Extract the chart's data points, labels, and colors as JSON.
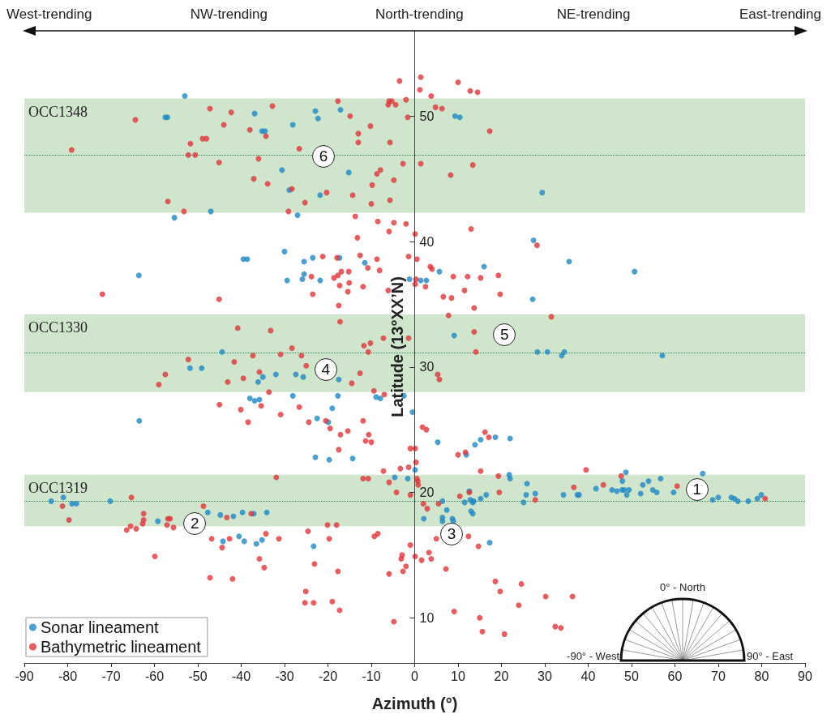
{
  "chart_data": {
    "type": "scatter",
    "xlabel": "Azimuth (°)",
    "ylabel": "Latitude (13°XX’N)",
    "xlim": [
      -90,
      90
    ],
    "xticks": [
      -90,
      -80,
      -70,
      -60,
      -50,
      -40,
      -30,
      -20,
      -10,
      0,
      10,
      20,
      30,
      40,
      50,
      60,
      70,
      80,
      90
    ],
    "ylim": [
      6.4,
      56.8
    ],
    "yticks": [
      10,
      20,
      30,
      40,
      50
    ],
    "grid": false,
    "legend": "bottom left",
    "marker": "circle",
    "series": [
      {
        "name": "Sonar lineament",
        "color": "#1e88c4",
        "x": [
          -53,
          -57.5,
          -57,
          -36.9,
          -35.2,
          -34.5,
          -30.6,
          -28.9,
          -47,
          -55.4,
          -30,
          -39.5,
          -38.6,
          -63.6,
          -29.4,
          -44.4,
          -51.8,
          -49.1,
          -22.9,
          -22.3,
          -17.1,
          -28.1,
          -15.2,
          -21.8,
          -27,
          9.3,
          10.4,
          29.4,
          -25.5,
          -23.5,
          -17.3,
          -11.5,
          -25.5,
          -25.9,
          -21.8,
          -1.2,
          1.4,
          2.7,
          5.7,
          16,
          27.4,
          27.2,
          9.1,
          28.3,
          30.6,
          33.9,
          34.5,
          57.1,
          35.6,
          50.7,
          -35,
          -36.1,
          -32,
          -38,
          -36.9,
          -35.8,
          -63.5,
          -83.8,
          -81,
          -79,
          -78,
          -70.2,
          -59.2,
          -47.7,
          -44.8,
          -41.8,
          -39.7,
          -37.1,
          -34.1,
          -44.2,
          -40.5,
          -39.3,
          -36.5,
          -35.2,
          -27.4,
          -25.7,
          -17.5,
          -28.1,
          -17.7,
          -8.9,
          -7.9,
          -2.5,
          -19,
          -0.5,
          -22.5,
          -19.9,
          5.3,
          -22.9,
          -19.7,
          -14.3,
          11.9,
          13.9,
          15.2,
          18.6,
          22,
          0.1,
          -4.6,
          -1.6,
          21.8,
          22,
          25.9,
          12.6,
          6.4,
          12.8,
          13.4,
          13.6,
          11.5,
          15.2,
          16.5,
          25.1,
          25.7,
          27.8,
          7.4,
          13,
          13.4,
          2.1,
          6.4,
          6.4,
          8.7,
          8.9,
          17.3,
          -23.3,
          34.3,
          37.5,
          37.9,
          41.8,
          45.5,
          46.6,
          47.8,
          48.3,
          49.4,
          47.9,
          48.7,
          48.9,
          52.1,
          52.6,
          53.9,
          54.9,
          55.8,
          56.7,
          59.7,
          66.4,
          68.7,
          70,
          73,
          73.7,
          74.5,
          76.9,
          79,
          79.9
        ],
        "values": [
          51.6,
          49.9,
          49.9,
          50.2,
          48.8,
          48.8,
          45.7,
          44.1,
          42.4,
          41.9,
          39.2,
          38.6,
          38.6,
          37.3,
          36.9,
          31.2,
          29.9,
          29.9,
          50.4,
          49.8,
          50.5,
          49.3,
          45.5,
          43.7,
          42.1,
          50,
          49.9,
          43.9,
          38.4,
          38.7,
          38.7,
          38.3,
          37.4,
          37,
          36.9,
          37,
          36.9,
          36.9,
          37.6,
          38,
          40.1,
          35.4,
          32.5,
          31.2,
          31.2,
          30.9,
          31.2,
          30.9,
          38.4,
          37.6,
          29.2,
          28.8,
          29.4,
          27.5,
          27.3,
          27.4,
          25.7,
          19.3,
          19.6,
          19.1,
          19.1,
          19.3,
          17.7,
          18.4,
          18.2,
          18.1,
          18.4,
          18.3,
          18.4,
          16.1,
          16.5,
          16.1,
          15.9,
          16.2,
          29.4,
          29.2,
          29,
          27.7,
          27.7,
          27.6,
          27.5,
          27.7,
          26.7,
          26.4,
          25.9,
          25.6,
          24,
          22.8,
          22.6,
          22.7,
          23,
          23.8,
          24.2,
          24.4,
          24.3,
          21.8,
          21.2,
          21.1,
          21.4,
          21.1,
          20.7,
          20.1,
          19.3,
          19.4,
          19.2,
          19.3,
          19.2,
          19.5,
          19.8,
          19.2,
          19.8,
          19.9,
          18.6,
          18.5,
          18.3,
          17.9,
          18,
          17.7,
          17.9,
          17.7,
          16,
          15.7,
          19.8,
          19.8,
          19.8,
          20.3,
          20.2,
          20.1,
          20.2,
          20.2,
          20.2,
          20.9,
          21.6,
          19.8,
          19.9,
          20.6,
          20.9,
          20.2,
          20,
          21.1,
          20,
          21.5,
          19.4,
          19.6,
          19.6,
          19.5,
          19.3,
          19.3,
          19.5,
          19.8
        ]
      },
      {
        "name": "Bathymetric lineament",
        "color": "#e0353b",
        "x": [
          -32.8,
          -47.2,
          -42.3,
          -64.4,
          -44,
          -38,
          -34.3,
          -51.7,
          -48.9,
          -48,
          -79.1,
          -52.2,
          -50.6,
          -36,
          -45.1,
          -37.1,
          -33.9,
          -56.9,
          -53.2,
          -29.1,
          -72,
          -45.1,
          -40.8,
          -33.2,
          -37.3,
          -30.9,
          -52.2,
          -41.6,
          -3.5,
          1.4,
          1.2,
          3.8,
          10,
          12.8,
          14.5,
          -17.7,
          -5.9,
          -5.3,
          -6.1,
          -4.4,
          -2,
          4.8,
          6.3,
          -1.6,
          -14.9,
          -10.2,
          17.3,
          -13,
          -13,
          -5.7,
          -26.6,
          -2.7,
          1.4,
          13.4,
          8.3,
          -8.7,
          -7.9,
          -4.8,
          -9.8,
          -28.3,
          -20.3,
          -14.3,
          -25.3,
          -10,
          -5.7,
          -13.7,
          -8.5,
          -4.8,
          -2,
          -5.9,
          0.1,
          13,
          -13.2,
          28.2,
          -12.6,
          -21.2,
          -17.9,
          -1.4,
          0.5,
          -8.7,
          -10.8,
          3.6,
          4,
          -8.1,
          -16.9,
          -15.2,
          -23.8,
          -18.6,
          -17.7,
          12.2,
          8.9,
          15.2,
          19.3,
          -15.1,
          -17.3,
          -11.9,
          0.3,
          0.1,
          2.5,
          -15.4,
          -6.1,
          -23.5,
          19.7,
          11.5,
          6.6,
          8.5,
          13.7,
          7.8,
          -17.5,
          -17.2,
          13.7,
          -1.4,
          -7.2,
          -11.7,
          -10.2,
          -10.7,
          14.1,
          -28.3,
          -26.1,
          -25,
          31.5,
          -12.6,
          -14.5,
          5.3,
          5.7,
          -9.4,
          -7,
          -26.6,
          -24.4,
          -20.5,
          -19.5,
          -15.4,
          -11.9,
          -17.1,
          -10.6,
          -11.3,
          -10,
          1.8,
          2.7,
          -17.5,
          -1,
          0.1,
          10,
          11.7,
          16.2,
          17.1,
          0.3,
          -1.4,
          -7.2,
          -3.3,
          -11.9,
          -10.7,
          -5.9,
          0.5,
          0.7,
          0.8,
          15.2,
          19.3,
          -4.2,
          -1,
          19.5,
          10.4,
          2,
          5.5,
          2.9,
          12.6,
          27.8,
          -20.1,
          -18,
          -24.6,
          -19.7,
          -9.3,
          -8.5,
          5,
          12.4,
          -1,
          14.7,
          3.3,
          -2.9,
          -3.1,
          0.1,
          1.6,
          3.8,
          -23.1,
          -2,
          -2.7,
          -17.7,
          -5.9,
          7.2,
          18.6,
          19.7,
          24.6,
          30.2,
          24,
          -25.1,
          -25.3,
          -23.3,
          -19,
          -17.3,
          9.1,
          -4.8,
          15,
          15.6,
          20.7,
          39.5,
          36.7,
          43.5,
          47.6,
          60.5,
          80.8,
          36.4,
          32.4,
          33.7,
          -57.5,
          -59,
          -43.1,
          -39.5,
          -35.8,
          -33.6,
          -45,
          -40.1,
          -35.4,
          -38.4,
          -30.9,
          -31.9,
          -65.3,
          -81.2,
          -79.7,
          -48.7,
          -62.5,
          -62.5,
          -62.7,
          -66.4,
          -65.5,
          -64.2,
          -56.9,
          -56.4,
          -57.1,
          -55.6,
          -43.3,
          -37.7,
          -46.8,
          -44.4,
          -42.7,
          -34.3,
          -31.3,
          -59.9,
          -35.8,
          -34.7,
          -47.2,
          -42
        ],
        "values": [
          50.8,
          50.6,
          50.3,
          49.7,
          49.3,
          48.9,
          48.4,
          47.8,
          48.2,
          48.2,
          47.3,
          46.9,
          46.9,
          46.6,
          46.3,
          45,
          44.6,
          43.2,
          42.4,
          42.4,
          35.8,
          35.4,
          33.1,
          32.9,
          30.9,
          31,
          30.6,
          30.4,
          52.8,
          53.1,
          52.1,
          51.6,
          52.7,
          52,
          51.9,
          51.2,
          51.2,
          51.2,
          50.9,
          50.9,
          51.3,
          50.7,
          50.6,
          49.9,
          50,
          49.2,
          48.8,
          48.6,
          47.9,
          47.9,
          47.4,
          46.2,
          46.2,
          46.1,
          45.3,
          45.4,
          45.7,
          44.9,
          44.5,
          44.2,
          43.9,
          43.7,
          43.1,
          43,
          43.3,
          42,
          41.6,
          41.5,
          41.4,
          40.8,
          40.6,
          41,
          40.3,
          39.7,
          38.9,
          38.8,
          38.7,
          38.8,
          38.6,
          38.6,
          37.9,
          38,
          37.8,
          37.7,
          37.6,
          37.6,
          37.2,
          37.1,
          37.3,
          37.2,
          37.2,
          37.1,
          37.3,
          36.7,
          36.5,
          36.4,
          37,
          36.6,
          36.4,
          36,
          36.1,
          35.8,
          35.8,
          36.1,
          35.6,
          35.5,
          34.7,
          34.1,
          34.9,
          33.6,
          32.8,
          32.3,
          32.3,
          31.7,
          31.9,
          31.2,
          31.2,
          31.5,
          30.9,
          30.1,
          34,
          29.5,
          28.7,
          29.4,
          29,
          28.1,
          27.8,
          26.8,
          25.6,
          25.7,
          25.1,
          24.9,
          25.7,
          24.6,
          24.6,
          24.1,
          24,
          25.2,
          25,
          23.4,
          23.5,
          23.5,
          23,
          23.2,
          24.8,
          24.4,
          22.4,
          22,
          21.7,
          21.9,
          21.1,
          21.1,
          20.8,
          21.1,
          20.9,
          20.6,
          21.7,
          21.3,
          20,
          19.8,
          20,
          19.7,
          19.1,
          19.1,
          18.7,
          20,
          19.4,
          17.4,
          17.4,
          16.9,
          16.3,
          16.5,
          16.7,
          16.3,
          16.5,
          15.8,
          15.7,
          15.2,
          15,
          14.7,
          14.9,
          14.6,
          14.7,
          14.3,
          14.1,
          13.7,
          13.7,
          13.5,
          13.9,
          12.9,
          12.1,
          12.7,
          11.7,
          11,
          12.1,
          11.2,
          11.2,
          11.3,
          10.6,
          10.5,
          9.7,
          10,
          8.9,
          8.7,
          21.8,
          20.4,
          20.6,
          21.3,
          20.5,
          19.5,
          11.7,
          9.3,
          9.2,
          29.4,
          28.6,
          28.8,
          29.1,
          29.6,
          28,
          27,
          26.6,
          26.9,
          25.6,
          26.2,
          21.2,
          19.6,
          18.9,
          17.8,
          18.9,
          18.3,
          17.8,
          17.5,
          17,
          17.3,
          17.1,
          17.9,
          17.9,
          17.4,
          17.2,
          18,
          18.3,
          16.3,
          15.6,
          16.3,
          16.7,
          16.3,
          14.9,
          14.7,
          14,
          13.2,
          13.1
        ]
      }
    ],
    "bands": [
      {
        "axis": "y",
        "from": 42.3,
        "to": 51.4,
        "label": "OCC1348",
        "color": "#cfe6cc"
      },
      {
        "axis": "y",
        "from": 28.0,
        "to": 34.2,
        "label": "OCC1330",
        "color": "#cfe6cc"
      },
      {
        "axis": "y",
        "from": 17.3,
        "to": 21.4,
        "label": "OCC1319",
        "color": "#cfe6cc"
      }
    ],
    "ref_lines": [
      {
        "axis": "y",
        "value": 46.9,
        "color": "#2e8b57",
        "line_style": "dotted"
      },
      {
        "axis": "y",
        "value": 31.1,
        "color": "#2e8b57",
        "line_style": "dotted"
      },
      {
        "axis": "y",
        "value": 19.3,
        "color": "#2e8b57",
        "line_style": "dotted"
      }
    ],
    "annotations": [
      "West-trending",
      "NW-trending",
      "North-trending",
      "NE-trending",
      "East-trending",
      "0° - North",
      "-90° - West",
      "90° - East",
      {
        "text": "1",
        "x": 65.1,
        "y": 20.2
      },
      {
        "text": "2",
        "x": -50.7,
        "y": 17.5
      },
      {
        "text": "3",
        "x": 8.5,
        "y": 16.7
      },
      {
        "text": "4",
        "x": -20.5,
        "y": 29.8
      },
      {
        "text": "5",
        "x": 20.7,
        "y": 32.6
      },
      {
        "text": "6",
        "x": -21,
        "y": 46.8
      }
    ]
  }
}
